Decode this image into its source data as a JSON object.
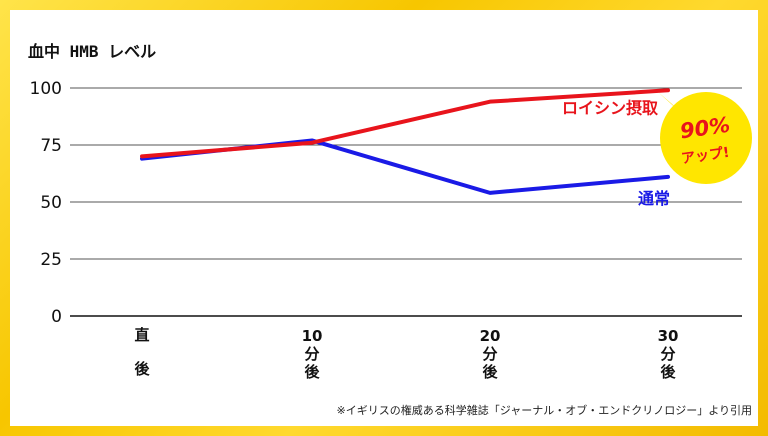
{
  "chart_data": {
    "type": "line",
    "title": "",
    "ylabel": "血中 HMB レベル",
    "xlabel": "",
    "ylim": [
      0,
      100
    ],
    "yticks": [
      0,
      25,
      50,
      75,
      100
    ],
    "grid": true,
    "categories": [
      [
        "直",
        "後"
      ],
      [
        "10",
        "分",
        "後"
      ],
      [
        "20",
        "分",
        "後"
      ],
      [
        "30",
        "分",
        "後"
      ]
    ],
    "series": [
      {
        "name": "ロイシン摂取",
        "color": "#e8141c",
        "values": [
          70,
          76,
          94,
          99
        ]
      },
      {
        "name": "通常",
        "color": "#1a1ae6",
        "values": [
          69,
          77,
          54,
          61
        ]
      }
    ],
    "annotation": {
      "percent": "90%",
      "text": "アップ!",
      "color": "#e8141c",
      "background": "#ffe600"
    }
  },
  "footnote": "※イギリスの権威ある科学雑誌「ジャーナル・オブ・エンドクリノロジー」より引用"
}
